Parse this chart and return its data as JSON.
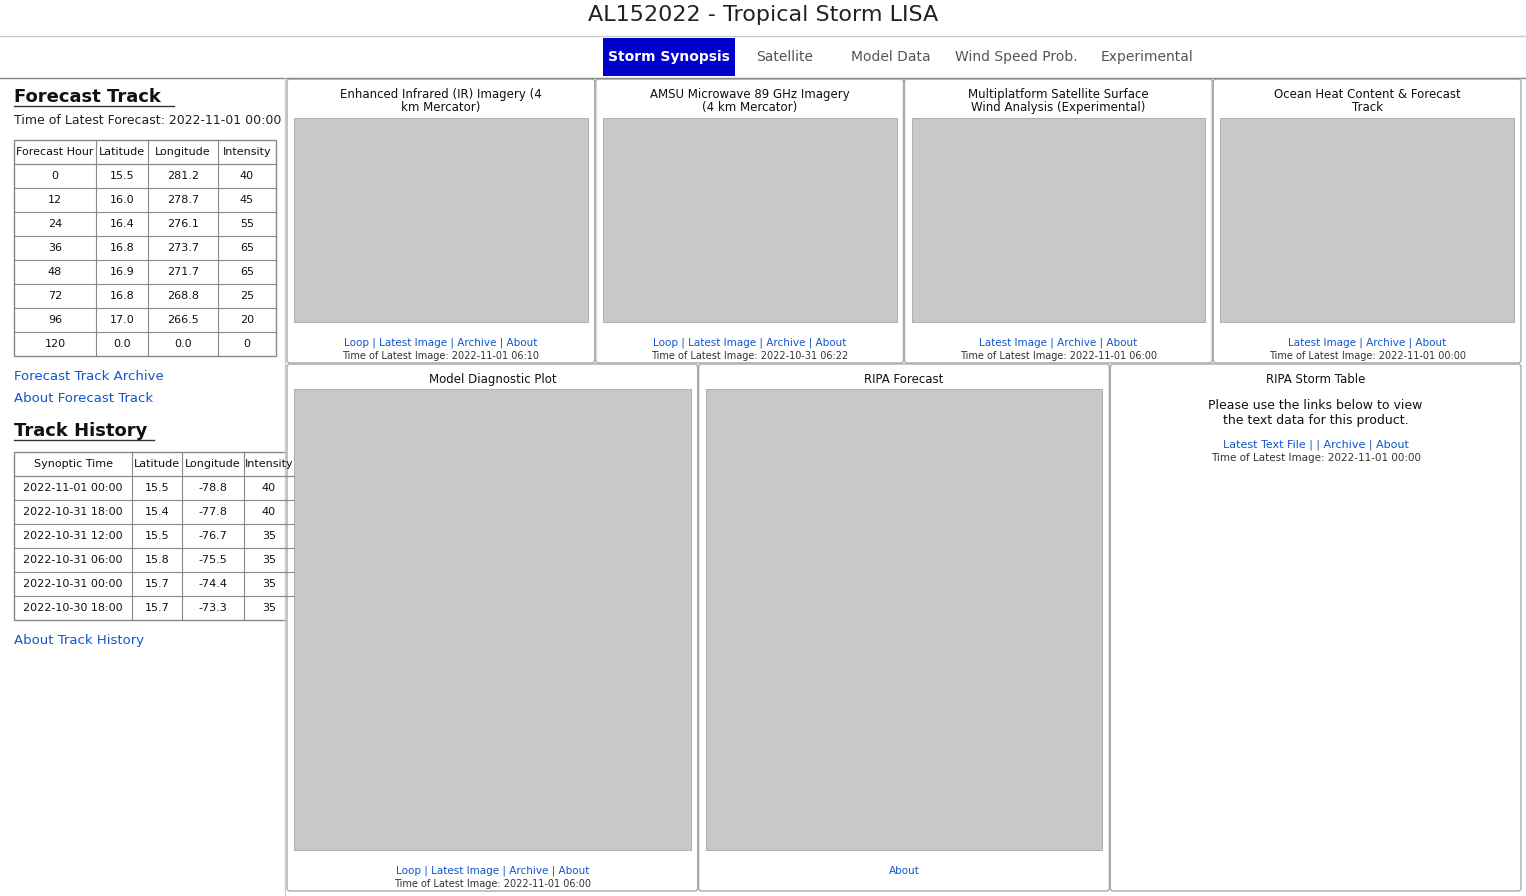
{
  "title": "AL152022 - Tropical Storm LISA",
  "background_color": "#ffffff",
  "nav_tabs": [
    "Storm Synopsis",
    "Satellite",
    "Model Data",
    "Wind Speed Prob.",
    "Experimental"
  ],
  "active_tab": "Storm Synopsis",
  "active_tab_color": "#0000cc",
  "active_tab_text_color": "#ffffff",
  "tab_text_color": "#555555",
  "left_panel_title": "Forecast Track",
  "left_panel_subtitle": "Time of Latest Forecast: 2022-11-01 00:00",
  "forecast_table_headers": [
    "Forecast Hour",
    "Latitude",
    "Longitude",
    "Intensity"
  ],
  "forecast_table_data": [
    [
      0,
      15.5,
      281.2,
      40
    ],
    [
      12,
      16.0,
      278.7,
      45
    ],
    [
      24,
      16.4,
      276.1,
      55
    ],
    [
      36,
      16.8,
      273.7,
      65
    ],
    [
      48,
      16.9,
      271.7,
      65
    ],
    [
      72,
      16.8,
      268.8,
      25
    ],
    [
      96,
      17.0,
      266.5,
      20
    ],
    [
      120,
      0.0,
      0.0,
      0
    ]
  ],
  "forecast_archive_link": "Forecast Track Archive",
  "forecast_about_link": "About Forecast Track",
  "track_history_title": "Track History",
  "track_history_headers": [
    "Synoptic Time",
    "Latitude",
    "Longitude",
    "Intensity"
  ],
  "track_history_data": [
    [
      "2022-11-01 00:00",
      15.5,
      -78.8,
      40
    ],
    [
      "2022-10-31 18:00",
      15.4,
      -77.8,
      40
    ],
    [
      "2022-10-31 12:00",
      15.5,
      -76.7,
      35
    ],
    [
      "2022-10-31 06:00",
      15.8,
      -75.5,
      35
    ],
    [
      "2022-10-31 00:00",
      15.7,
      -74.4,
      35
    ],
    [
      "2022-10-30 18:00",
      15.7,
      -73.3,
      35
    ]
  ],
  "track_history_about_link": "About Track History",
  "card1_title": "Enhanced Infrared (IR) Imagery (4\nkm Mercator)",
  "card1_links": "Loop | Latest Image | Archive | About",
  "card1_time": "Time of Latest Image: 2022-11-01 06:10",
  "card2_title": "AMSU Microwave 89 GHz Imagery\n(4 km Mercator)",
  "card2_links": "Loop | Latest Image | Archive | About",
  "card2_time": "Time of Latest Image: 2022-10-31 06:22",
  "card3_title": "Multiplatform Satellite Surface\nWind Analysis (Experimental)",
  "card3_links": "Latest Image | Archive | About",
  "card3_time": "Time of Latest Image: 2022-11-01 06:00",
  "card4_title": "Ocean Heat Content & Forecast\nTrack",
  "card4_links": "Latest Image | Archive | About",
  "card4_time": "Time of Latest Image: 2022-11-01 00:00",
  "card5_title": "Model Diagnostic Plot",
  "card5_links": "Loop | Latest Image | Archive | About",
  "card5_time": "Time of Latest Image: 2022-11-01 06:00",
  "card6_title": "RIPA Forecast",
  "card6_links": "About",
  "card6_time": "",
  "card7_title": "RIPA Storm Table",
  "card7_text": "Please use the links below to view\nthe text data for this product.",
  "card7_links": "Latest Text File | | Archive | About",
  "card7_time": "Time of Latest Image: 2022-11-01 00:00",
  "link_color": "#1155cc",
  "table_border_color": "#888888"
}
